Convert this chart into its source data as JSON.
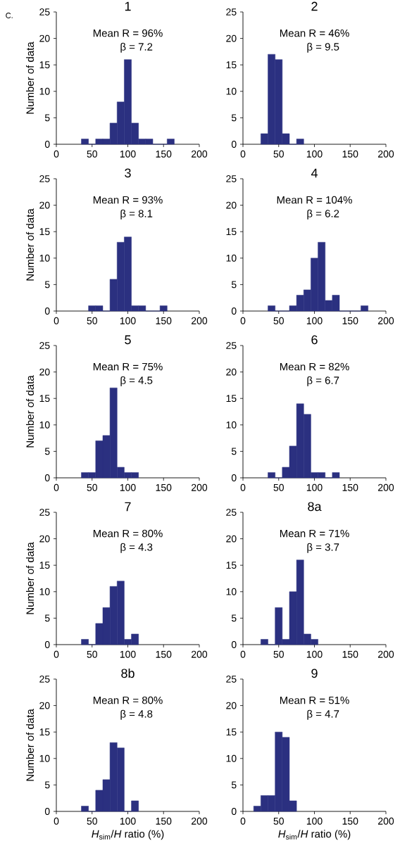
{
  "chart_data": [
    {
      "type": "histogram",
      "title": "1",
      "ylabel": "Number of data",
      "annotations": [
        "C.",
        "Mean R = 96%",
        "β = 7.2"
      ],
      "bins": [
        35,
        45,
        55,
        65,
        75,
        85,
        95,
        105,
        115,
        125,
        135,
        145,
        155,
        165
      ],
      "values": [
        1,
        0,
        1,
        1,
        4,
        8,
        16,
        4,
        1,
        1,
        0,
        0,
        1
      ],
      "color": "#2b3080",
      "xlim": [
        0,
        200
      ],
      "ylim": [
        0,
        25
      ],
      "xticks": [
        0,
        50,
        100,
        150,
        200
      ],
      "yticks": [
        0,
        5,
        10,
        15,
        20,
        25
      ]
    },
    {
      "type": "histogram",
      "title": "2",
      "annotations": [
        "Mean R = 46%",
        "β = 9.5"
      ],
      "bins": [
        25,
        35,
        45,
        55,
        65,
        75,
        85
      ],
      "values": [
        2,
        17,
        16,
        2,
        0,
        1
      ],
      "color": "#2b3080",
      "xlim": [
        0,
        200
      ],
      "ylim": [
        0,
        25
      ],
      "xticks": [
        0,
        50,
        100,
        150,
        200
      ],
      "yticks": [
        0,
        5,
        10,
        15,
        20,
        25
      ]
    },
    {
      "type": "histogram",
      "title": "3",
      "ylabel": "Number of data",
      "annotations": [
        "Mean R = 93%",
        "β = 8.1"
      ],
      "bins": [
        45,
        55,
        65,
        75,
        85,
        95,
        105,
        115,
        125,
        135,
        145,
        155
      ],
      "values": [
        1,
        1,
        0,
        6,
        13,
        14,
        1,
        1,
        0,
        0,
        1
      ],
      "color": "#2b3080",
      "xlim": [
        0,
        200
      ],
      "ylim": [
        0,
        25
      ],
      "xticks": [
        0,
        50,
        100,
        150,
        200
      ],
      "yticks": [
        0,
        5,
        10,
        15,
        20,
        25
      ]
    },
    {
      "type": "histogram",
      "title": "4",
      "annotations": [
        "Mean R = 104%",
        "β = 6.2"
      ],
      "bins": [
        35,
        45,
        55,
        65,
        75,
        85,
        95,
        105,
        115,
        125,
        135,
        145,
        155,
        165,
        175
      ],
      "values": [
        1,
        0,
        0,
        1,
        3,
        4,
        10,
        13,
        2,
        3,
        0,
        0,
        0,
        1
      ],
      "color": "#2b3080",
      "xlim": [
        0,
        200
      ],
      "ylim": [
        0,
        25
      ],
      "xticks": [
        0,
        50,
        100,
        150,
        200
      ],
      "yticks": [
        0,
        5,
        10,
        15,
        20,
        25
      ]
    },
    {
      "type": "histogram",
      "title": "5",
      "ylabel": "Number of data",
      "annotations": [
        "Mean R = 75%",
        "β = 4.5"
      ],
      "bins": [
        35,
        45,
        55,
        65,
        75,
        85,
        95,
        105,
        115
      ],
      "values": [
        1,
        1,
        7,
        8,
        17,
        2,
        1,
        1
      ],
      "color": "#2b3080",
      "xlim": [
        0,
        200
      ],
      "ylim": [
        0,
        25
      ],
      "xticks": [
        0,
        50,
        100,
        150,
        200
      ],
      "yticks": [
        0,
        5,
        10,
        15,
        20,
        25
      ]
    },
    {
      "type": "histogram",
      "title": "6",
      "annotations": [
        "Mean R = 82%",
        "β = 6.7"
      ],
      "bins": [
        35,
        45,
        55,
        65,
        75,
        85,
        95,
        105,
        115,
        125,
        135
      ],
      "values": [
        1,
        0,
        2,
        6,
        14,
        12,
        1,
        1,
        0,
        1
      ],
      "color": "#2b3080",
      "xlim": [
        0,
        200
      ],
      "ylim": [
        0,
        25
      ],
      "xticks": [
        0,
        50,
        100,
        150,
        200
      ],
      "yticks": [
        0,
        5,
        10,
        15,
        20,
        25
      ]
    },
    {
      "type": "histogram",
      "title": "7",
      "ylabel": "Number of data",
      "annotations": [
        "Mean R = 80%",
        "β = 4.3"
      ],
      "bins": [
        35,
        45,
        55,
        65,
        75,
        85,
        95,
        105,
        115
      ],
      "values": [
        1,
        0,
        4,
        7,
        11,
        12,
        1,
        2
      ],
      "color": "#2b3080",
      "xlim": [
        0,
        200
      ],
      "ylim": [
        0,
        25
      ],
      "xticks": [
        0,
        50,
        100,
        150,
        200
      ],
      "yticks": [
        0,
        5,
        10,
        15,
        20,
        25
      ]
    },
    {
      "type": "histogram",
      "title": "8a",
      "annotations": [
        "Mean R = 71%",
        "β = 3.7"
      ],
      "bins": [
        25,
        35,
        45,
        55,
        65,
        75,
        85,
        95,
        105
      ],
      "values": [
        1,
        0,
        7,
        1,
        10,
        16,
        2,
        1
      ],
      "color": "#2b3080",
      "xlim": [
        0,
        200
      ],
      "ylim": [
        0,
        25
      ],
      "xticks": [
        0,
        50,
        100,
        150,
        200
      ],
      "yticks": [
        0,
        5,
        10,
        15,
        20,
        25
      ]
    },
    {
      "type": "histogram",
      "title": "8b",
      "ylabel": "Number of data",
      "xlabel": "*H*$_{sim}$/*H* ratio (%)",
      "annotations": [
        "Mean R = 80%",
        "β = 4.8"
      ],
      "bins": [
        35,
        45,
        55,
        65,
        75,
        85,
        95,
        105,
        115
      ],
      "values": [
        1,
        0,
        4,
        6,
        13,
        12,
        0,
        2
      ],
      "color": "#2b3080",
      "xlim": [
        0,
        200
      ],
      "ylim": [
        0,
        25
      ],
      "xticks": [
        0,
        50,
        100,
        150,
        200
      ],
      "yticks": [
        0,
        5,
        10,
        15,
        20,
        25
      ]
    },
    {
      "type": "histogram",
      "title": "9",
      "xlabel": "*H*$_{sim}$/*H* ratio (%)",
      "annotations": [
        "Mean R = 51%",
        "β = 4.7"
      ],
      "bins": [
        15,
        25,
        35,
        45,
        55,
        65,
        75
      ],
      "values": [
        1,
        3,
        3,
        15,
        14,
        2
      ],
      "color": "#2b3080",
      "xlim": [
        0,
        200
      ],
      "ylim": [
        0,
        25
      ],
      "xticks": [
        0,
        50,
        100,
        150,
        200
      ],
      "yticks": [
        0,
        5,
        10,
        15,
        20,
        25
      ]
    }
  ]
}
